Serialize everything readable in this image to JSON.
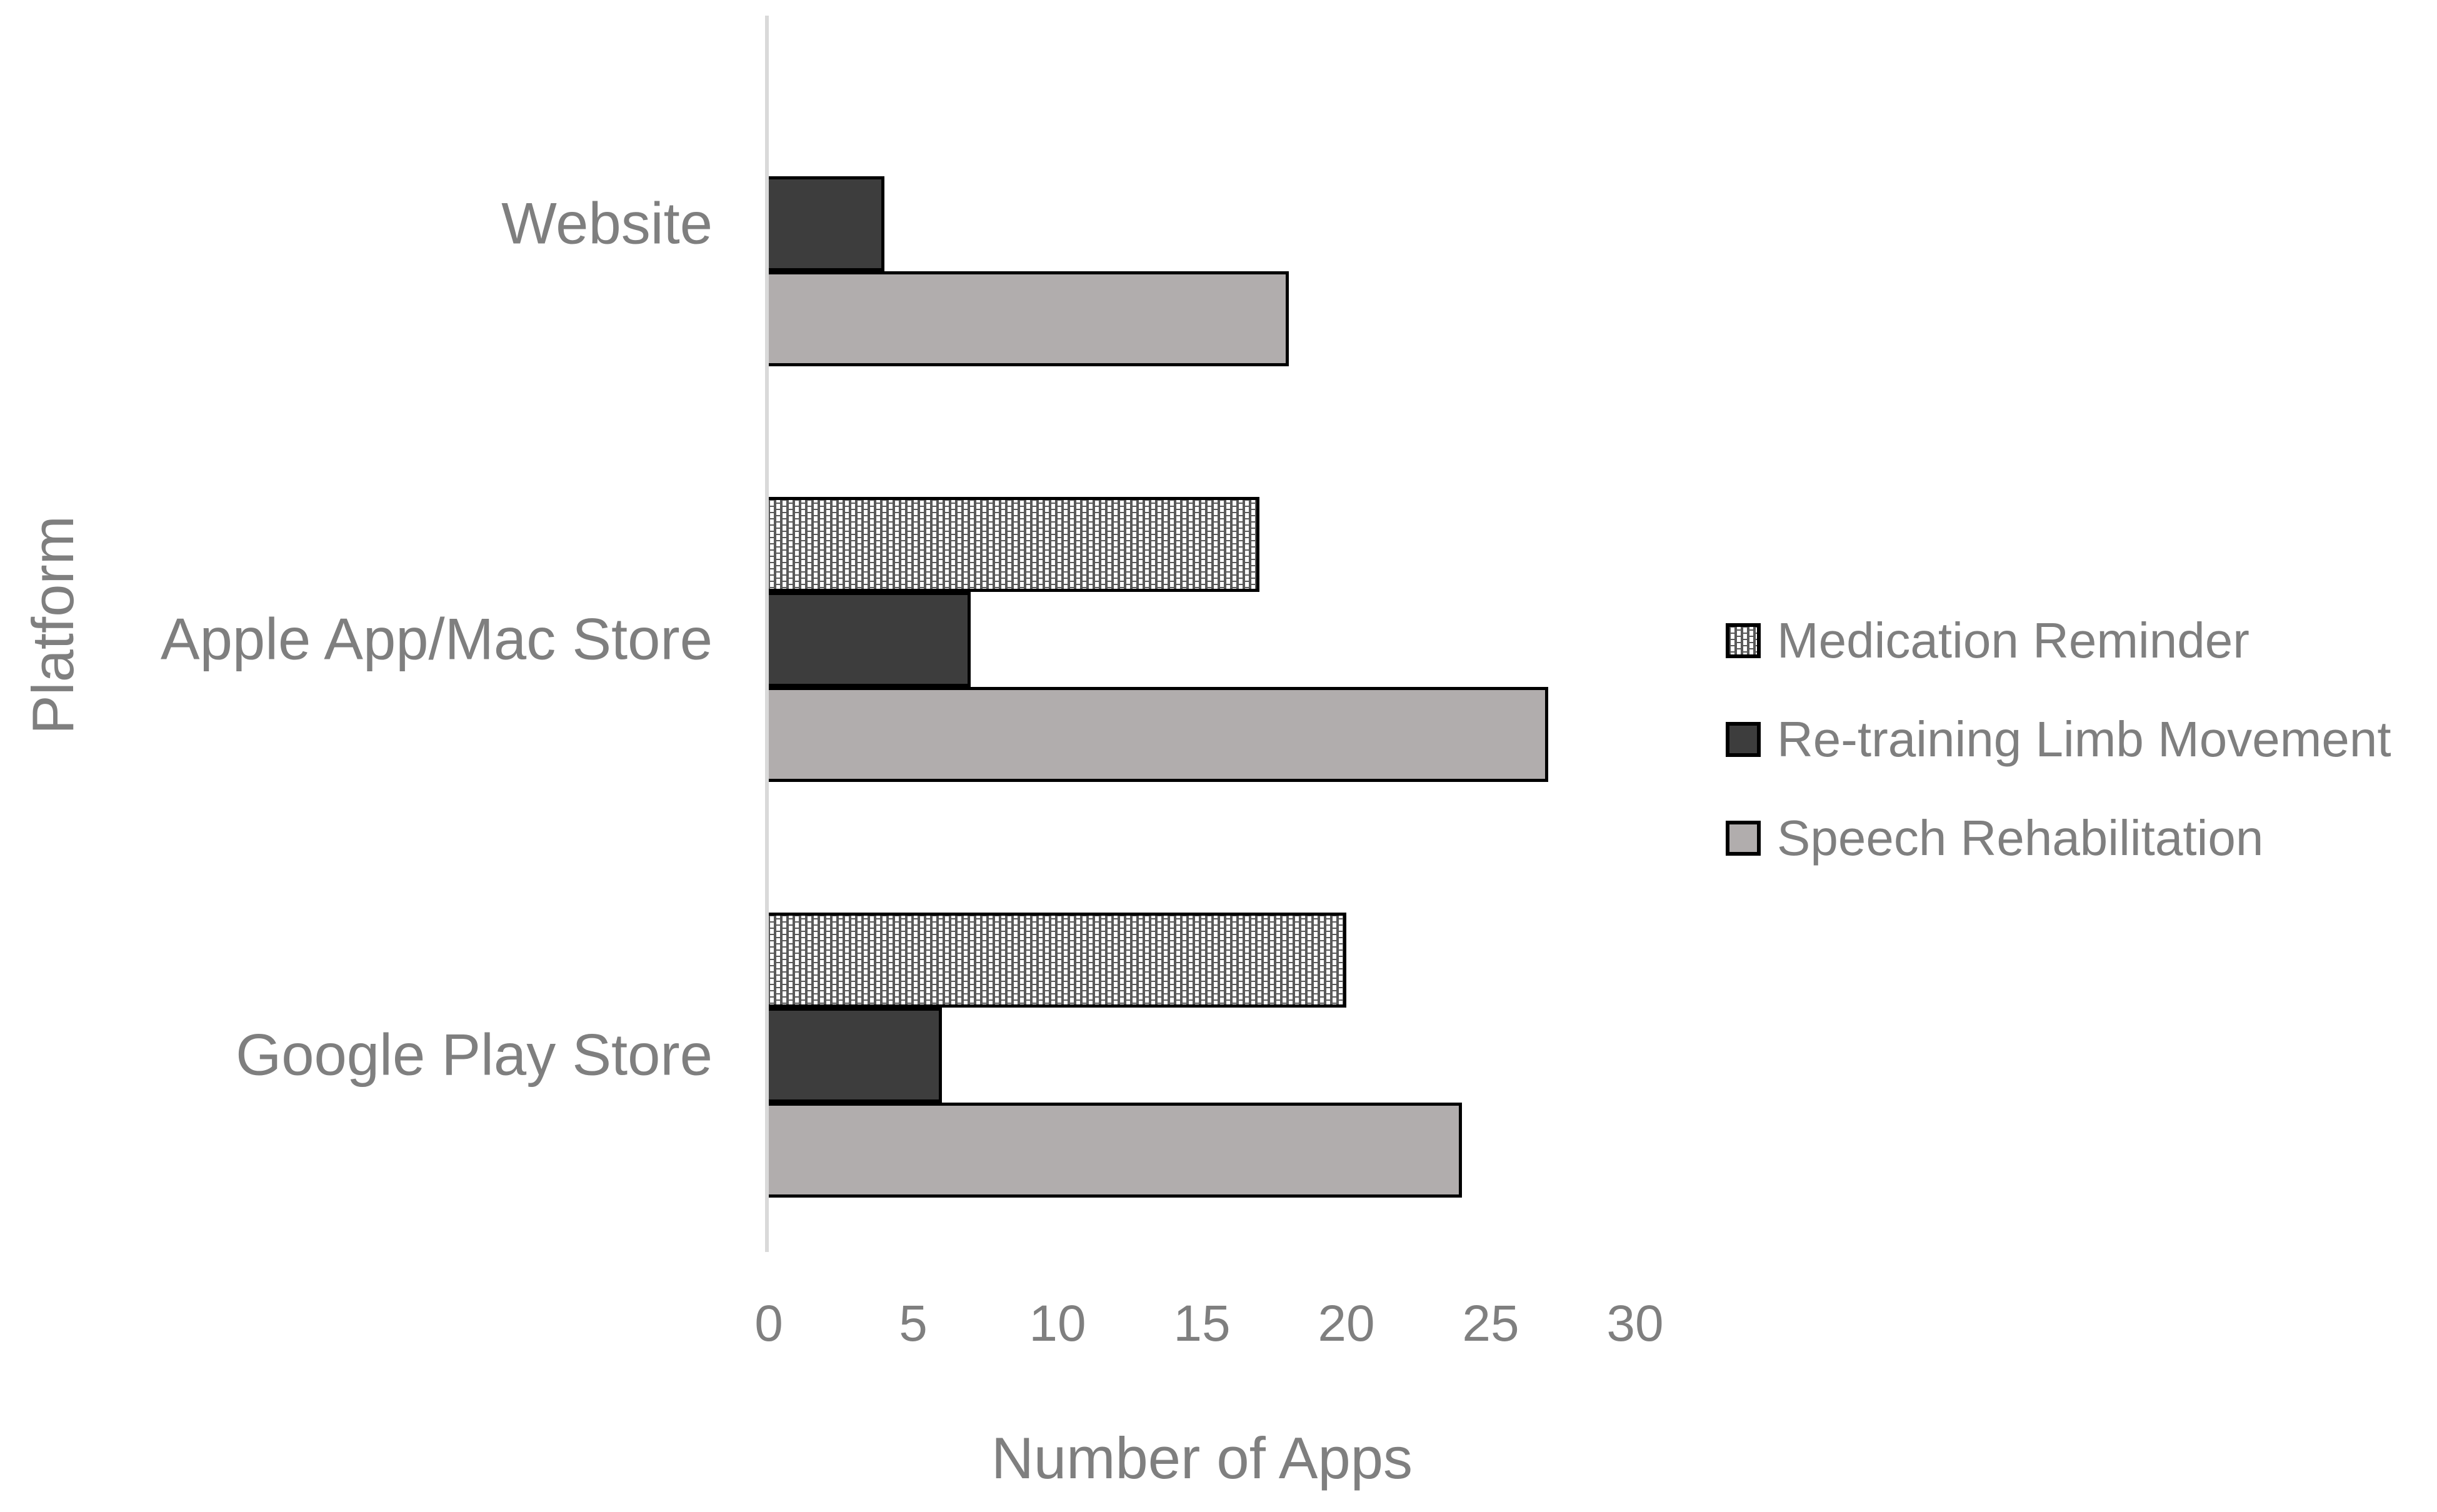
{
  "chart_data": {
    "type": "bar",
    "orientation": "horizontal",
    "title": "",
    "xlabel": "Number of Apps",
    "ylabel": "Platform",
    "categories": [
      "Website",
      "Apple App/Mac Store",
      "Google Play Store"
    ],
    "series": [
      {
        "name": "Medication Reminder",
        "style": "pattern",
        "swatch": "dotted-pattern",
        "values": [
          0,
          17,
          20
        ]
      },
      {
        "name": "Re-training Limb Movement",
        "style": "dark",
        "swatch": "solid-dark-gray",
        "values": [
          4,
          7,
          6
        ]
      },
      {
        "name": "Speech Rehabilitation",
        "style": "light",
        "swatch": "solid-light-gray",
        "values": [
          18,
          27,
          24
        ]
      }
    ],
    "xlim": [
      0,
      30
    ],
    "x_ticks": [
      "0",
      "5",
      "10",
      "15",
      "20",
      "25",
      "30"
    ],
    "grid": false,
    "legend_position": "right",
    "colors": {
      "series_dark": "#3d3d3d",
      "series_light": "#b1adad",
      "pattern_background": "#595959",
      "pattern_dot": "#ffffff",
      "bar_border": "#000000",
      "text": "#7f7f7f",
      "axis_line": "#d9d9d9",
      "background": "#ffffff"
    }
  }
}
